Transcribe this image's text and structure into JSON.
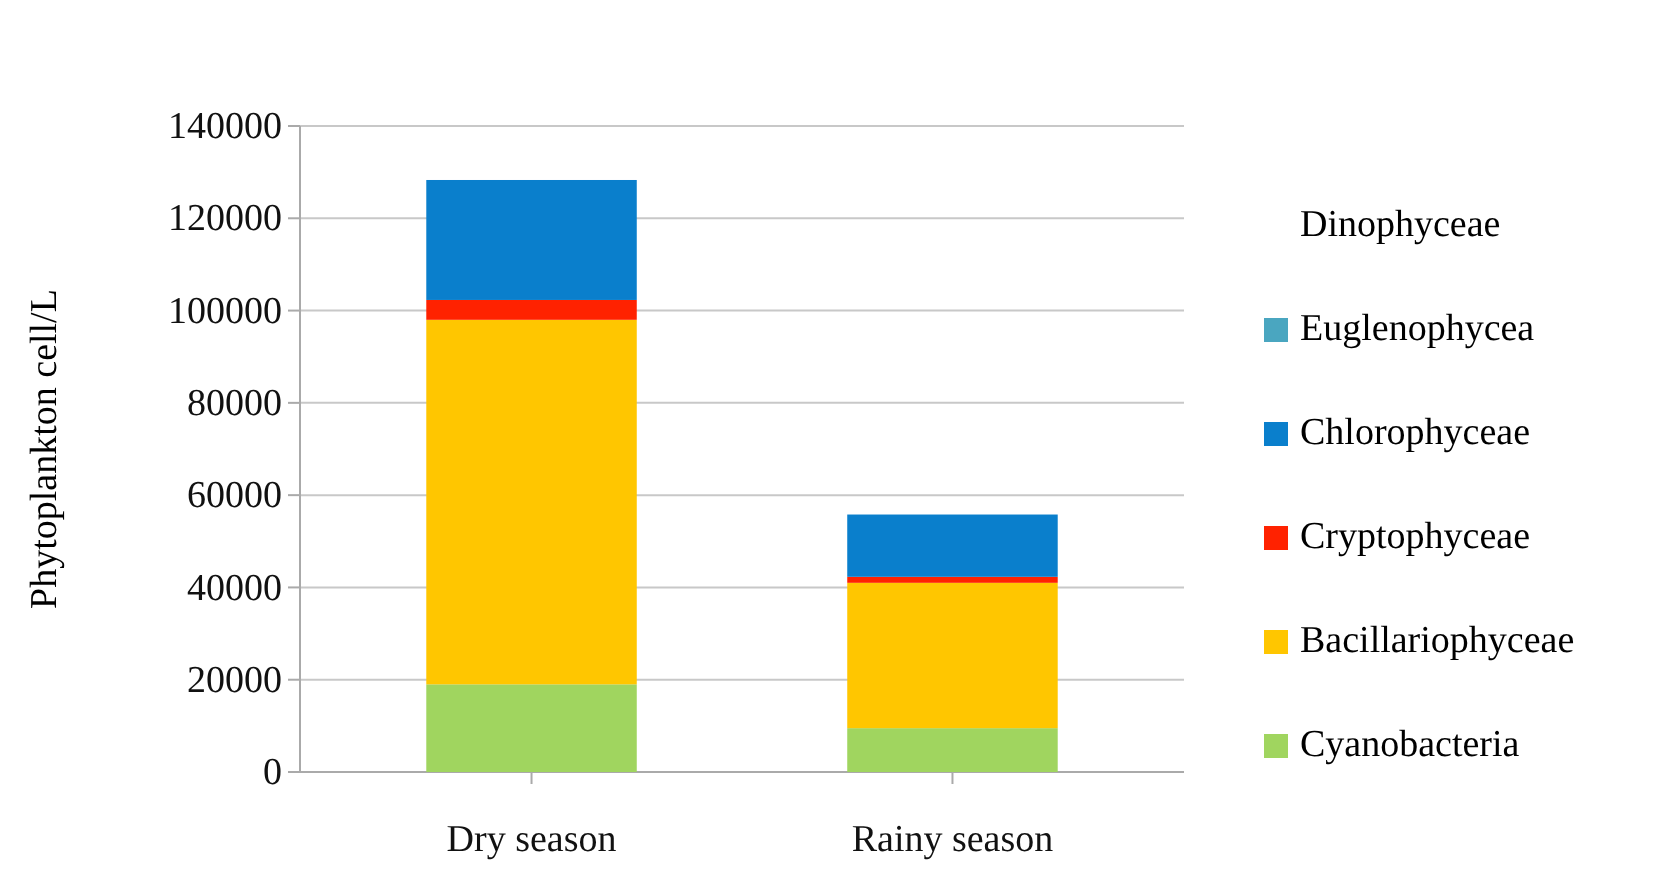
{
  "chart_data": {
    "type": "bar",
    "stacked": true,
    "ylabel": "Phytoplankton cell/L",
    "categories": [
      "Dry  season",
      "Rainy season"
    ],
    "series": [
      {
        "name": "Cyanobacteria",
        "color": "#a0d55f",
        "values": [
          19000,
          9500
        ]
      },
      {
        "name": "Bacillariophyceae",
        "color": "#ffc600",
        "values": [
          79000,
          31500
        ]
      },
      {
        "name": "Cryptophyceae",
        "color": "#ff2200",
        "values": [
          4300,
          1300
        ]
      },
      {
        "name": "Chlorophyceae",
        "color": "#0a7fcc",
        "values": [
          26000,
          13500
        ]
      },
      {
        "name": "Euglenophycea",
        "color": "#4aa6c0",
        "values": [
          0,
          0
        ]
      },
      {
        "name": "Dinophyceae",
        "values": [
          0,
          0
        ]
      }
    ],
    "ylim": [
      0,
      140000
    ],
    "yticks": [
      0,
      20000,
      40000,
      60000,
      80000,
      100000,
      120000,
      140000
    ],
    "grid": "y",
    "legend": "right"
  }
}
